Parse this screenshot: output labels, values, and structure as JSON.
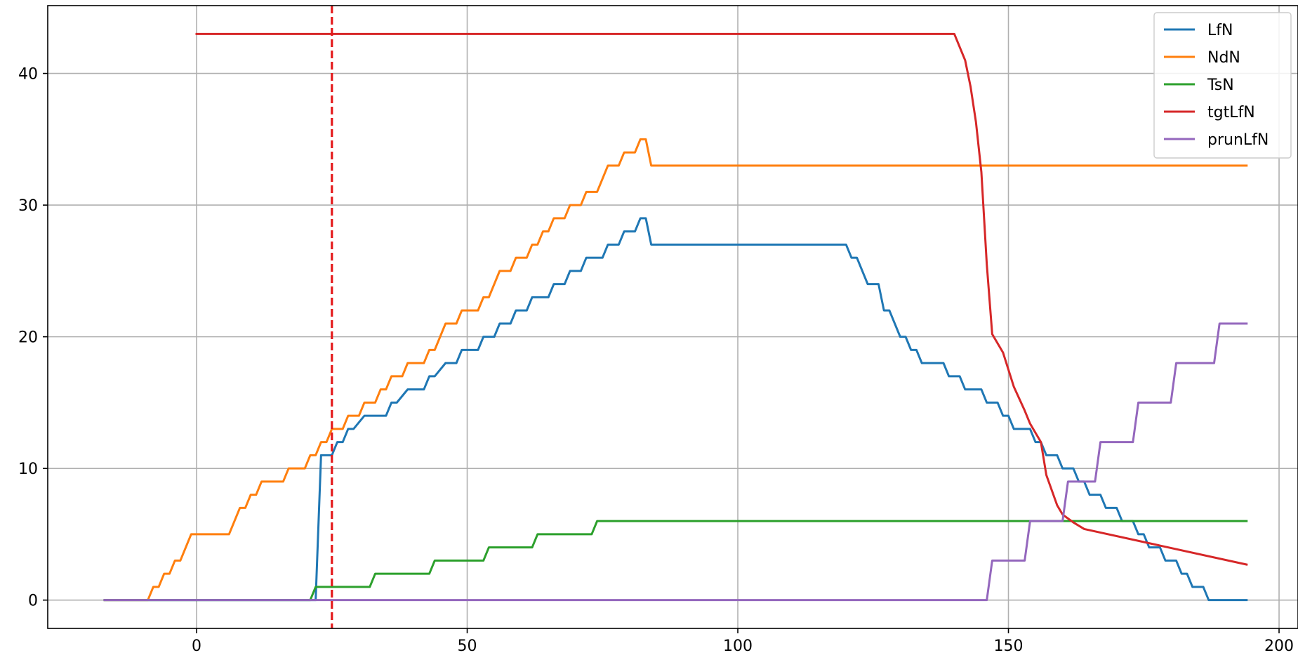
{
  "chart_data": {
    "type": "line",
    "title": "",
    "xlabel": "",
    "ylabel": "",
    "xlim": [
      -27.5,
      203.5
    ],
    "ylim": [
      -2.15,
      45.15
    ],
    "xticks": [
      0,
      50,
      100,
      150,
      200
    ],
    "yticks": [
      0,
      10,
      20,
      30,
      40
    ],
    "grid": true,
    "legend_position": "top-right",
    "vline": {
      "x": 25,
      "color": "#e41a1c",
      "style": "dashed"
    },
    "series": [
      {
        "name": "LfN",
        "color": "#1f77b4",
        "points": [
          [
            -17,
            0
          ],
          [
            22,
            0
          ],
          [
            23,
            11
          ],
          [
            25,
            11
          ],
          [
            26,
            12
          ],
          [
            27,
            12
          ],
          [
            28,
            13
          ],
          [
            29,
            13
          ],
          [
            31,
            14
          ],
          [
            35,
            14
          ],
          [
            36,
            15
          ],
          [
            37,
            15
          ],
          [
            39,
            16
          ],
          [
            42,
            16
          ],
          [
            43,
            17
          ],
          [
            44,
            17
          ],
          [
            46,
            18
          ],
          [
            48,
            18
          ],
          [
            49,
            19
          ],
          [
            52,
            19
          ],
          [
            53,
            20
          ],
          [
            55,
            20
          ],
          [
            56,
            21
          ],
          [
            58,
            21
          ],
          [
            59,
            22
          ],
          [
            61,
            22
          ],
          [
            62,
            23
          ],
          [
            65,
            23
          ],
          [
            66,
            24
          ],
          [
            68,
            24
          ],
          [
            69,
            25
          ],
          [
            71,
            25
          ],
          [
            72,
            26
          ],
          [
            75,
            26
          ],
          [
            76,
            27
          ],
          [
            78,
            27
          ],
          [
            79,
            28
          ],
          [
            81,
            28
          ],
          [
            82,
            29
          ],
          [
            83,
            29
          ],
          [
            84,
            27
          ],
          [
            120,
            27
          ],
          [
            121,
            26
          ],
          [
            122,
            26
          ],
          [
            124,
            24
          ],
          [
            126,
            24
          ],
          [
            127,
            22
          ],
          [
            128,
            22
          ],
          [
            130,
            20
          ],
          [
            131,
            20
          ],
          [
            132,
            19
          ],
          [
            133,
            19
          ],
          [
            134,
            18
          ],
          [
            138,
            18
          ],
          [
            139,
            17
          ],
          [
            141,
            17
          ],
          [
            142,
            16
          ],
          [
            145,
            16
          ],
          [
            146,
            15
          ],
          [
            148,
            15
          ],
          [
            149,
            14
          ],
          [
            150,
            14
          ],
          [
            151,
            13
          ],
          [
            154,
            13
          ],
          [
            155,
            12
          ],
          [
            156,
            12
          ],
          [
            157,
            11
          ],
          [
            159,
            11
          ],
          [
            160,
            10
          ],
          [
            162,
            10
          ],
          [
            163,
            9
          ],
          [
            164,
            9
          ],
          [
            165,
            8
          ],
          [
            167,
            8
          ],
          [
            168,
            7
          ],
          [
            170,
            7
          ],
          [
            171,
            6
          ],
          [
            173,
            6
          ],
          [
            174,
            5
          ],
          [
            175,
            5
          ],
          [
            176,
            4
          ],
          [
            178,
            4
          ],
          [
            179,
            3
          ],
          [
            181,
            3
          ],
          [
            182,
            2
          ],
          [
            183,
            2
          ],
          [
            184,
            1
          ],
          [
            186,
            1
          ],
          [
            187,
            0
          ],
          [
            194,
            0
          ]
        ]
      },
      {
        "name": "NdN",
        "color": "#ff7f0e",
        "points": [
          [
            -17,
            0
          ],
          [
            -9,
            0
          ],
          [
            -8,
            1
          ],
          [
            -7,
            1
          ],
          [
            -6,
            2
          ],
          [
            -5,
            2
          ],
          [
            -4,
            3
          ],
          [
            -3,
            3
          ],
          [
            -1,
            5
          ],
          [
            6,
            5
          ],
          [
            8,
            7
          ],
          [
            9,
            7
          ],
          [
            10,
            8
          ],
          [
            11,
            8
          ],
          [
            12,
            9
          ],
          [
            16,
            9
          ],
          [
            17,
            10
          ],
          [
            20,
            10
          ],
          [
            21,
            11
          ],
          [
            22,
            11
          ],
          [
            23,
            12
          ],
          [
            24,
            12
          ],
          [
            25,
            13
          ],
          [
            27,
            13
          ],
          [
            28,
            14
          ],
          [
            30,
            14
          ],
          [
            31,
            15
          ],
          [
            33,
            15
          ],
          [
            34,
            16
          ],
          [
            35,
            16
          ],
          [
            36,
            17
          ],
          [
            38,
            17
          ],
          [
            39,
            18
          ],
          [
            42,
            18
          ],
          [
            43,
            19
          ],
          [
            44,
            19
          ],
          [
            46,
            21
          ],
          [
            48,
            21
          ],
          [
            49,
            22
          ],
          [
            52,
            22
          ],
          [
            53,
            23
          ],
          [
            54,
            23
          ],
          [
            56,
            25
          ],
          [
            58,
            25
          ],
          [
            59,
            26
          ],
          [
            61,
            26
          ],
          [
            62,
            27
          ],
          [
            63,
            27
          ],
          [
            64,
            28
          ],
          [
            65,
            28
          ],
          [
            66,
            29
          ],
          [
            68,
            29
          ],
          [
            69,
            30
          ],
          [
            71,
            30
          ],
          [
            72,
            31
          ],
          [
            74,
            31
          ],
          [
            76,
            33
          ],
          [
            78,
            33
          ],
          [
            79,
            34
          ],
          [
            81,
            34
          ],
          [
            82,
            35
          ],
          [
            83,
            35
          ],
          [
            84,
            33
          ],
          [
            194,
            33
          ]
        ]
      },
      {
        "name": "TsN",
        "color": "#2ca02c",
        "points": [
          [
            -17,
            0
          ],
          [
            21,
            0
          ],
          [
            22,
            1
          ],
          [
            32,
            1
          ],
          [
            33,
            2
          ],
          [
            43,
            2
          ],
          [
            44,
            3
          ],
          [
            53,
            3
          ],
          [
            54,
            4
          ],
          [
            62,
            4
          ],
          [
            63,
            5
          ],
          [
            73,
            5
          ],
          [
            74,
            6
          ],
          [
            194,
            6
          ]
        ]
      },
      {
        "name": "tgtLfN",
        "color": "#d62728",
        "points": [
          [
            0,
            43
          ],
          [
            140,
            43
          ],
          [
            142,
            41
          ],
          [
            143,
            39
          ],
          [
            144,
            36.3
          ],
          [
            145,
            32.5
          ],
          [
            146,
            25.5
          ],
          [
            147,
            20.2
          ],
          [
            149,
            18.8
          ],
          [
            151,
            16.2
          ],
          [
            153,
            14.4
          ],
          [
            154,
            13.4
          ],
          [
            156,
            12.0
          ],
          [
            157,
            9.5
          ],
          [
            159,
            7.2
          ],
          [
            160,
            6.5
          ],
          [
            162,
            5.9
          ],
          [
            164,
            5.4
          ],
          [
            194,
            2.7
          ]
        ]
      },
      {
        "name": "prunLfN",
        "color": "#9467bd",
        "points": [
          [
            -17,
            0
          ],
          [
            146,
            0
          ],
          [
            147,
            3
          ],
          [
            153,
            3
          ],
          [
            154,
            6
          ],
          [
            160,
            6
          ],
          [
            161,
            9
          ],
          [
            166,
            9
          ],
          [
            167,
            12
          ],
          [
            173,
            12
          ],
          [
            174,
            15
          ],
          [
            180,
            15
          ],
          [
            181,
            18
          ],
          [
            188,
            18
          ],
          [
            189,
            21
          ],
          [
            194,
            21
          ]
        ]
      }
    ]
  }
}
